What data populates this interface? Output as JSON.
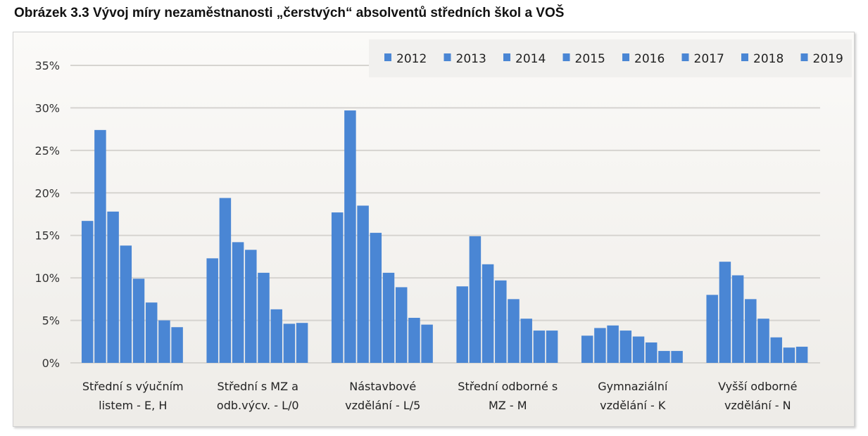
{
  "chart_data": {
    "type": "bar",
    "title": "Obrázek 3.3 Vývoj míry nezaměstnanosti „čerstvých“ absolventů středních škol a VOŠ",
    "xlabel": "",
    "ylabel": "",
    "ylim": [
      0,
      35
    ],
    "yticks": [
      "0%",
      "5%",
      "10%",
      "15%",
      "20%",
      "25%",
      "30%",
      "35%"
    ],
    "grid": true,
    "legend_position": "top-right",
    "color": "#4a86d4",
    "categories": [
      [
        "Střední s výučním",
        "listem - E, H"
      ],
      [
        "Střední s MZ a",
        "odb.výcv. - L/0"
      ],
      [
        "Nástavbové",
        "vzdělání - L/5"
      ],
      [
        "Střední odborné s",
        "MZ - M"
      ],
      [
        "Gymnaziální",
        "vzdělání - K"
      ],
      [
        "Vyšší odborné",
        "vzdělání - N"
      ]
    ],
    "series": [
      {
        "name": "2012",
        "values": [
          16.7,
          12.3,
          17.7,
          9.0,
          3.2,
          8.0
        ]
      },
      {
        "name": "2013",
        "values": [
          27.4,
          19.4,
          29.7,
          14.9,
          4.1,
          11.9
        ]
      },
      {
        "name": "2014",
        "values": [
          17.8,
          14.2,
          18.5,
          11.6,
          4.4,
          10.3
        ]
      },
      {
        "name": "2015",
        "values": [
          13.8,
          13.3,
          15.3,
          9.7,
          3.8,
          7.5
        ]
      },
      {
        "name": "2016",
        "values": [
          9.9,
          10.6,
          10.6,
          7.5,
          3.1,
          5.2
        ]
      },
      {
        "name": "2017",
        "values": [
          7.1,
          6.3,
          8.9,
          5.2,
          2.4,
          3.0
        ]
      },
      {
        "name": "2018",
        "values": [
          5.0,
          4.6,
          5.3,
          3.8,
          1.4,
          1.8
        ]
      },
      {
        "name": "2019",
        "values": [
          4.2,
          4.7,
          4.5,
          3.8,
          1.4,
          1.9
        ]
      }
    ]
  }
}
